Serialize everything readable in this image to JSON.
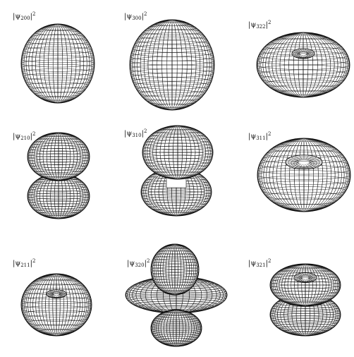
{
  "panels": [
    {
      "id": "200",
      "label": {
        "pre": "|ψ",
        "sub": "200",
        "post": "|",
        "sup": "2"
      },
      "shape": "sphere"
    },
    {
      "id": "300",
      "label": {
        "pre": "|ψ",
        "sub": "300",
        "post": "|",
        "sup": "2"
      },
      "shape": "sphere"
    },
    {
      "id": "322",
      "label": {
        "pre": "|ψ",
        "sub": "322",
        "post": "|",
        "sup": "2"
      },
      "shape": "torus-flat"
    },
    {
      "id": "210",
      "label": {
        "pre": "|ψ",
        "sub": "210",
        "post": "|",
        "sup": "2"
      },
      "shape": "double-lobe"
    },
    {
      "id": "310",
      "label": {
        "pre": "|ψ",
        "sub": "310",
        "post": "|",
        "sup": "2"
      },
      "shape": "double-lobe-ring"
    },
    {
      "id": "311",
      "label": {
        "pre": "|ψ",
        "sub": "311",
        "post": "|",
        "sup": "2"
      },
      "shape": "torus-wide"
    },
    {
      "id": "211",
      "label": {
        "pre": "|ψ",
        "sub": "211",
        "post": "|",
        "sup": "2"
      },
      "shape": "torus"
    },
    {
      "id": "320",
      "label": {
        "pre": "|ψ",
        "sub": "320",
        "post": "|",
        "sup": "2"
      },
      "shape": "dz2"
    },
    {
      "id": "321",
      "label": {
        "pre": "|ψ",
        "sub": "321",
        "post": "|",
        "sup": "2"
      },
      "shape": "double-torus"
    }
  ],
  "colors": {
    "mesh": "#111111",
    "fill": "#ffffff"
  }
}
